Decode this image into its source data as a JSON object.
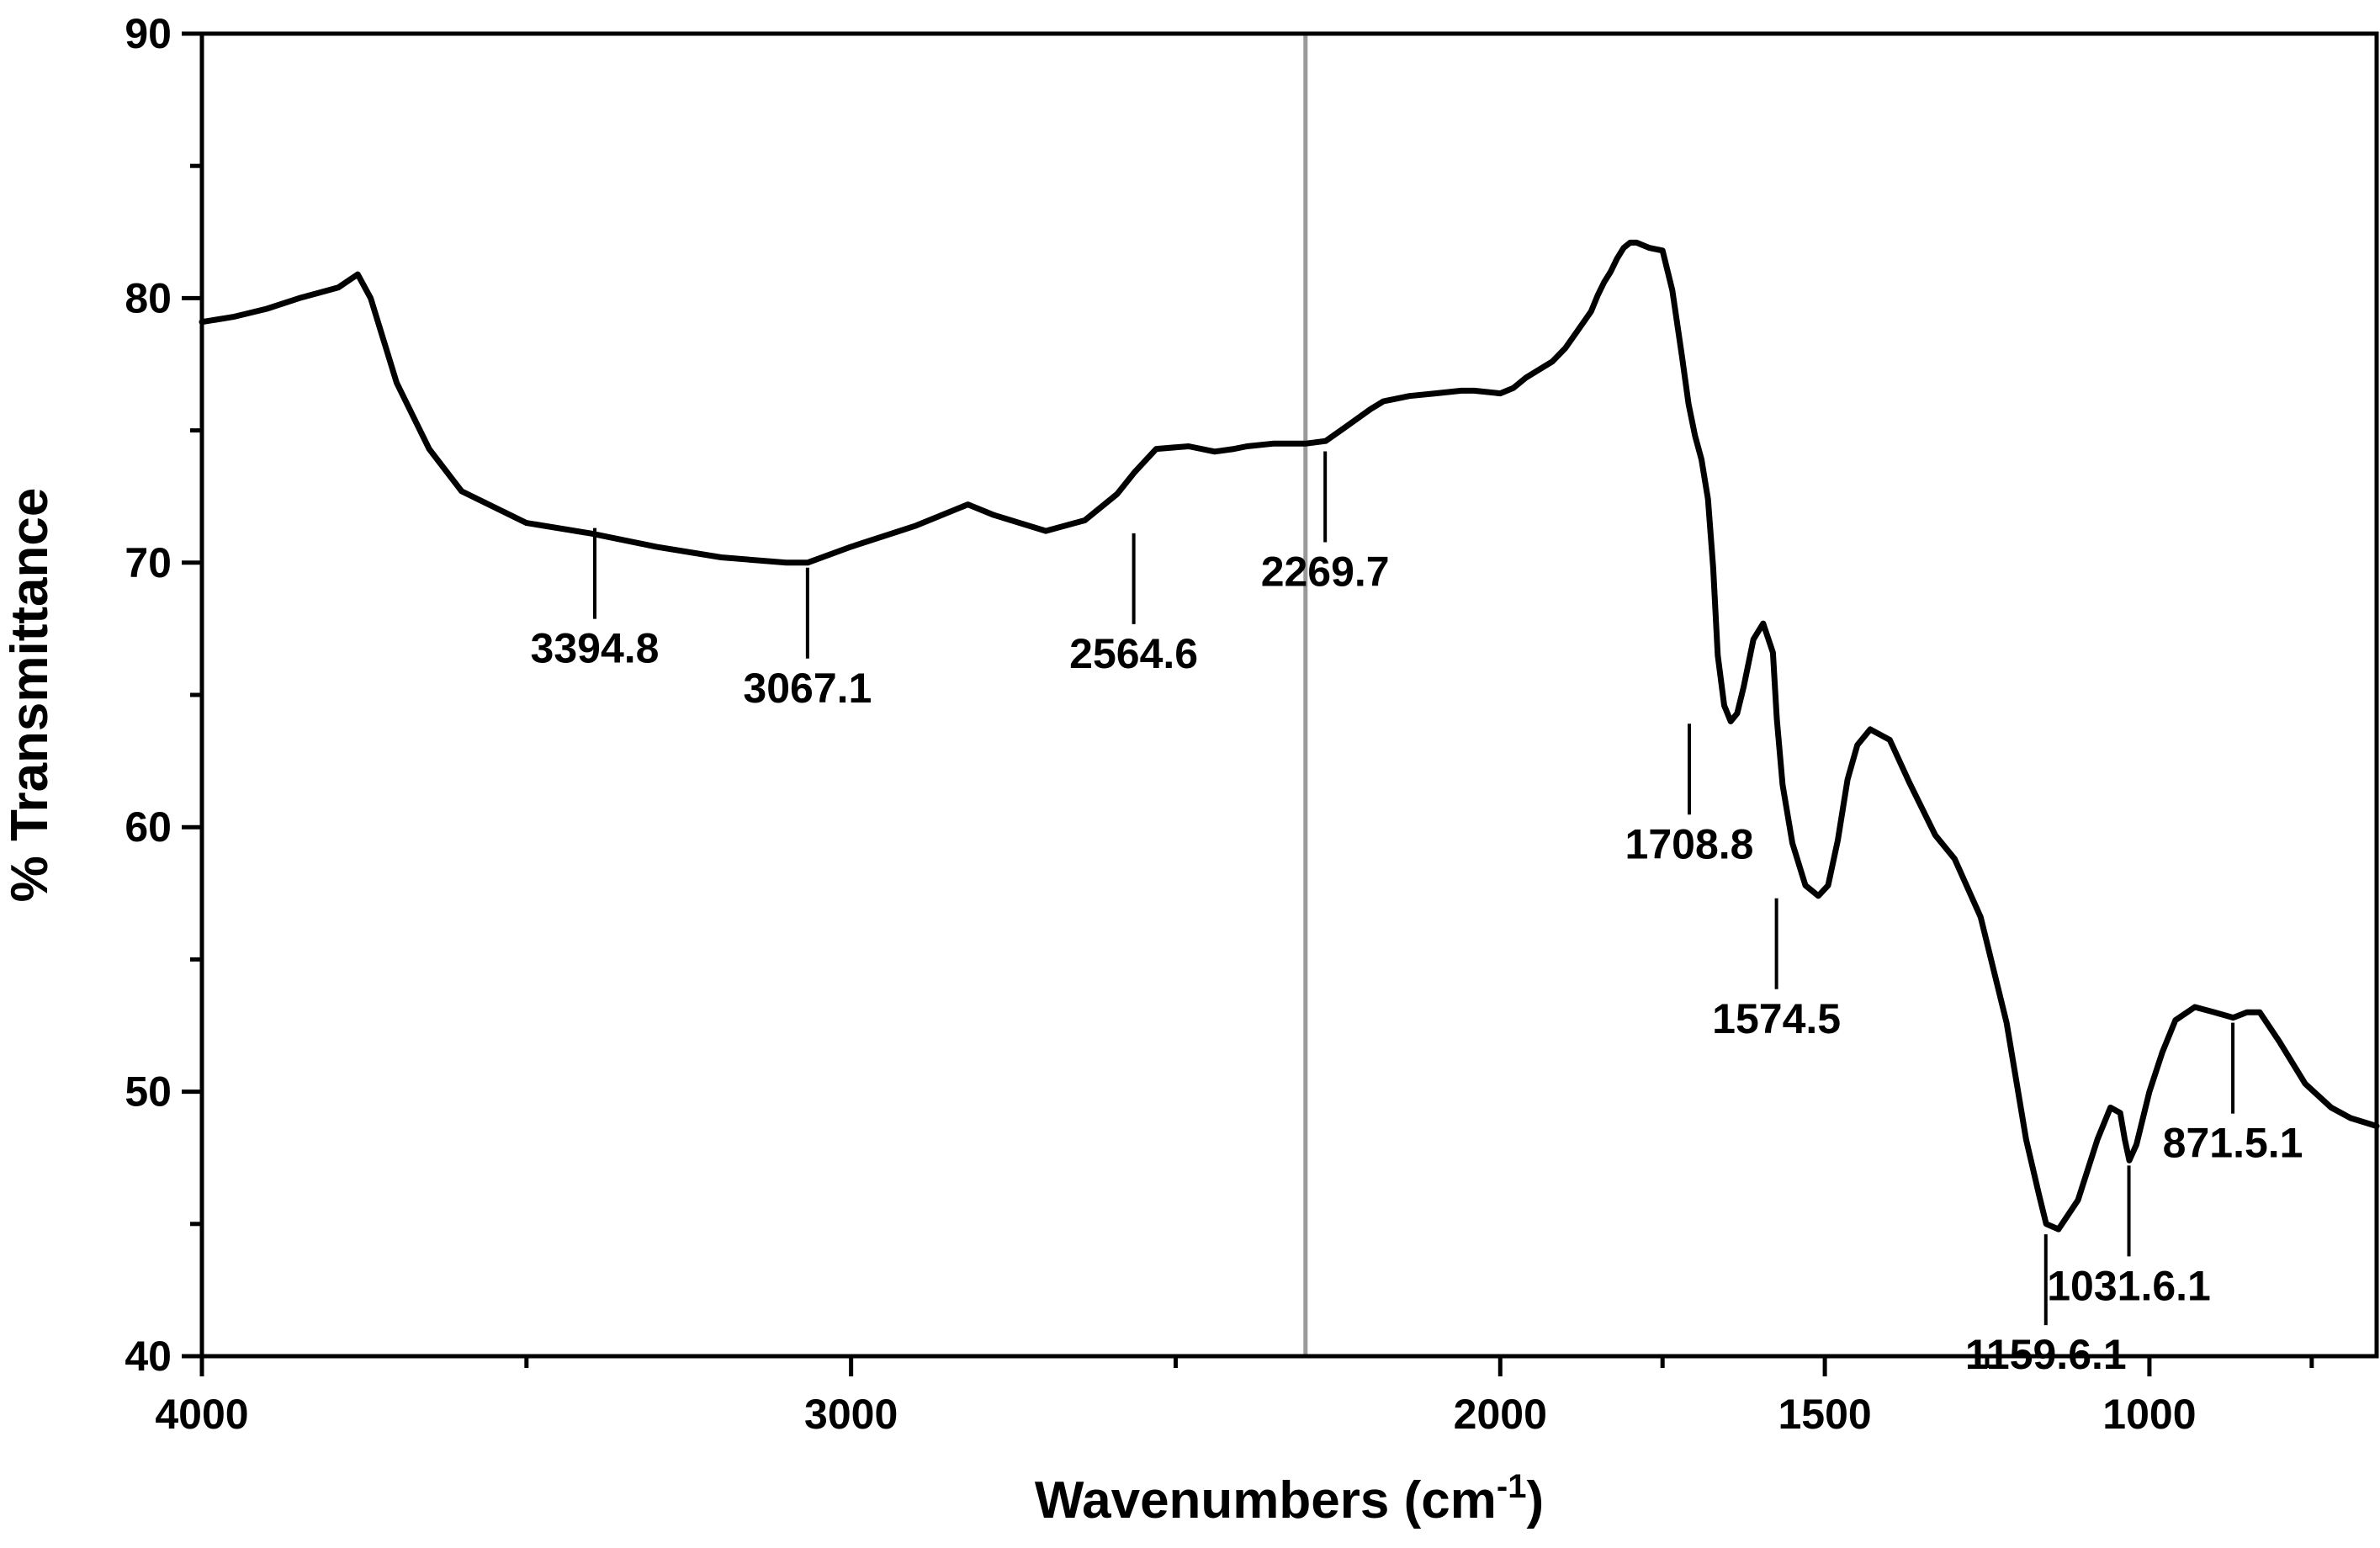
{
  "chart_data": {
    "type": "line",
    "title": "",
    "xlabel": "Wavenumbers (cm",
    "xlabel_sup": "-1",
    "xlabel_close": ")",
    "ylabel": "% Transmittance",
    "xlim": [
      4000,
      650
    ],
    "ylim": [
      40,
      90
    ],
    "x_ticks": [
      4000,
      3000,
      2000,
      1500,
      1000
    ],
    "y_ticks": [
      40,
      50,
      60,
      70,
      80,
      90
    ],
    "x_tick_labels": [
      "4000",
      "3000",
      "2000",
      "1500",
      "1000"
    ],
    "y_tick_labels": [
      "40",
      "50",
      "60",
      "70",
      "80",
      "90"
    ],
    "grid": false,
    "axis_break": {
      "x": 2300,
      "color": "#999999"
    },
    "series": [
      {
        "color": "#000000",
        "x": [
          4000,
          3950,
          3900,
          3850,
          3790,
          3760,
          3740,
          3700,
          3650,
          3600,
          3500,
          3400,
          3300,
          3200,
          3100,
          3067,
          3000,
          2900,
          2820,
          2780,
          2700,
          2640,
          2590,
          2564,
          2530,
          2480,
          2440,
          2410,
          2390,
          2350,
          2300,
          2269,
          2240,
          2200,
          2180,
          2140,
          2100,
          2060,
          2040,
          2000,
          1980,
          1960,
          1940,
          1920,
          1900,
          1880,
          1860,
          1850,
          1840,
          1830,
          1820,
          1810,
          1800,
          1790,
          1770,
          1750,
          1735,
          1720,
          1710,
          1700,
          1690,
          1680,
          1672,
          1665,
          1655,
          1645,
          1635,
          1625,
          1610,
          1595,
          1580,
          1574,
          1565,
          1550,
          1530,
          1510,
          1495,
          1480,
          1465,
          1450,
          1430,
          1400,
          1370,
          1330,
          1300,
          1260,
          1220,
          1190,
          1170,
          1159,
          1140,
          1110,
          1080,
          1060,
          1045,
          1038,
          1031,
          1020,
          1000,
          980,
          960,
          930,
          900,
          871,
          850,
          830,
          800,
          760,
          720,
          690,
          650
        ],
        "y": [
          79.1,
          79.3,
          79.6,
          80.0,
          80.4,
          80.9,
          80.0,
          76.8,
          74.3,
          72.7,
          71.5,
          71.1,
          70.6,
          70.2,
          70.0,
          70.0,
          70.6,
          71.4,
          72.2,
          71.8,
          71.2,
          71.6,
          72.6,
          73.4,
          74.3,
          74.4,
          74.2,
          74.3,
          74.4,
          74.5,
          74.5,
          74.6,
          75.1,
          75.8,
          76.1,
          76.3,
          76.4,
          76.5,
          76.5,
          76.4,
          76.6,
          77.0,
          77.3,
          77.6,
          78.1,
          78.8,
          79.5,
          80.1,
          80.6,
          81.0,
          81.5,
          81.9,
          82.1,
          82.1,
          81.9,
          81.8,
          80.3,
          77.8,
          76.0,
          74.8,
          73.9,
          72.4,
          69.8,
          66.5,
          64.6,
          64.0,
          64.3,
          65.3,
          67.1,
          67.7,
          66.6,
          64.1,
          61.6,
          59.4,
          57.8,
          57.4,
          57.8,
          59.5,
          61.8,
          63.1,
          63.7,
          63.3,
          61.7,
          59.7,
          58.8,
          56.6,
          52.6,
          48.2,
          46.1,
          45.0,
          44.8,
          45.9,
          48.2,
          49.4,
          49.2,
          48.2,
          47.4,
          48.0,
          50.0,
          51.5,
          52.7,
          53.2,
          53.0,
          52.8,
          53.0,
          53.0,
          51.9,
          50.3,
          49.4,
          49.0,
          48.7
        ]
      }
    ],
    "annotations": [
      {
        "label": "3394.8",
        "x": 3394.8,
        "y": 71.5
      },
      {
        "label": "3067.1",
        "x": 3067.1,
        "y": 70.0
      },
      {
        "label": "2564.6",
        "x": 2564.6,
        "y": 71.3
      },
      {
        "label": "2269.7",
        "x": 2269.7,
        "y": 74.4
      },
      {
        "label": "1708.8",
        "x": 1708.8,
        "y": 64.1
      },
      {
        "label": "1574.5",
        "x": 1574.5,
        "y": 57.5
      },
      {
        "label": "1159.6.1",
        "x": 1159.6,
        "y": 44.8
      },
      {
        "label": "1031.6.1",
        "x": 1031.6,
        "y": 47.4
      },
      {
        "label": "871.5.1",
        "x": 871.5,
        "y": 52.8
      }
    ]
  }
}
